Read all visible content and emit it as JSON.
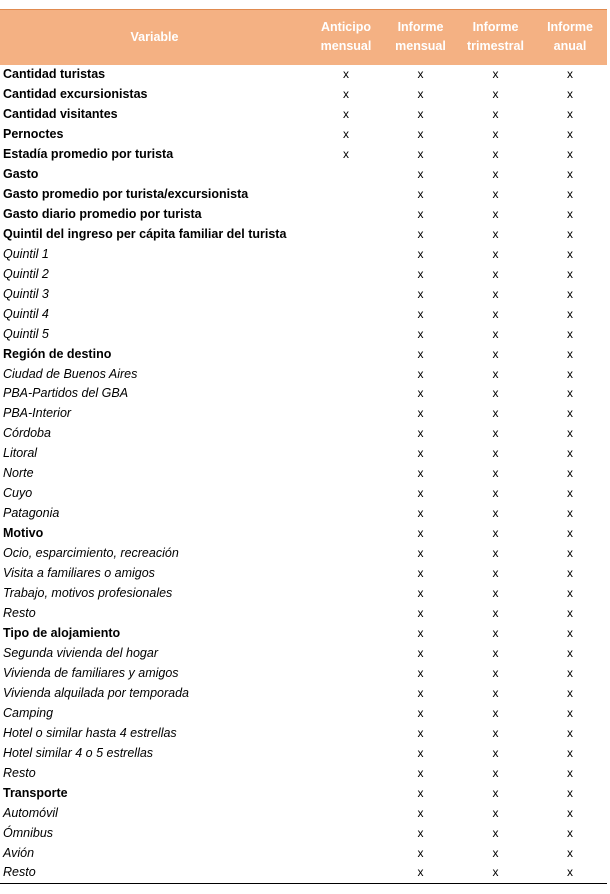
{
  "header": {
    "variable": "Variable",
    "anticipo_mensual": "Anticipo mensual",
    "informe_mensual": "Informe mensual",
    "informe_trimestral": "Informe trimestral",
    "informe_anual": "Informe anual"
  },
  "rows": [
    {
      "label": "Cantidad turistas",
      "type": "group",
      "marks": [
        "x",
        "x",
        "x",
        "x"
      ]
    },
    {
      "label": "Cantidad excursionistas",
      "type": "group",
      "marks": [
        "x",
        "x",
        "x",
        "x"
      ]
    },
    {
      "label": "Cantidad visitantes",
      "type": "group",
      "marks": [
        "x",
        "x",
        "x",
        "x"
      ]
    },
    {
      "label": "Pernoctes",
      "type": "group",
      "marks": [
        "x",
        "x",
        "x",
        "x"
      ]
    },
    {
      "label": "Estadía promedio por turista",
      "type": "group",
      "marks": [
        "x",
        "x",
        "x",
        "x"
      ]
    },
    {
      "label": "Gasto",
      "type": "group",
      "marks": [
        "",
        "x",
        "x",
        "x"
      ]
    },
    {
      "label": "Gasto promedio por turista/excursionista",
      "type": "group",
      "marks": [
        "",
        "x",
        "x",
        "x"
      ]
    },
    {
      "label": "Gasto diario promedio por turista",
      "type": "group",
      "marks": [
        "",
        "x",
        "x",
        "x"
      ]
    },
    {
      "label": "Quintil del ingreso per cápita familiar del turista",
      "type": "group",
      "marks": [
        "",
        "x",
        "x",
        "x"
      ]
    },
    {
      "label": "Quintil 1",
      "type": "sub",
      "marks": [
        "",
        "x",
        "x",
        "x"
      ]
    },
    {
      "label": "Quintil 2",
      "type": "sub",
      "marks": [
        "",
        "x",
        "x",
        "x"
      ]
    },
    {
      "label": "Quintil 3",
      "type": "sub",
      "marks": [
        "",
        "x",
        "x",
        "x"
      ]
    },
    {
      "label": "Quintil 4",
      "type": "sub",
      "marks": [
        "",
        "x",
        "x",
        "x"
      ]
    },
    {
      "label": "Quintil 5",
      "type": "sub",
      "marks": [
        "",
        "x",
        "x",
        "x"
      ]
    },
    {
      "label": "Región de destino",
      "type": "group",
      "marks": [
        "",
        "x",
        "x",
        "x"
      ]
    },
    {
      "label": "Ciudad de Buenos Aires",
      "type": "sub",
      "marks": [
        "",
        "x",
        "x",
        "x"
      ]
    },
    {
      "label": "PBA-Partidos del GBA",
      "type": "sub",
      "marks": [
        "",
        "x",
        "x",
        "x"
      ]
    },
    {
      "label": "PBA-Interior",
      "type": "sub",
      "marks": [
        "",
        "x",
        "x",
        "x"
      ]
    },
    {
      "label": "Córdoba",
      "type": "sub",
      "marks": [
        "",
        "x",
        "x",
        "x"
      ]
    },
    {
      "label": "Litoral",
      "type": "sub",
      "marks": [
        "",
        "x",
        "x",
        "x"
      ]
    },
    {
      "label": "Norte",
      "type": "sub",
      "marks": [
        "",
        "x",
        "x",
        "x"
      ]
    },
    {
      "label": "Cuyo",
      "type": "sub",
      "marks": [
        "",
        "x",
        "x",
        "x"
      ]
    },
    {
      "label": "Patagonia",
      "type": "sub",
      "marks": [
        "",
        "x",
        "x",
        "x"
      ]
    },
    {
      "label": "Motivo",
      "type": "group",
      "marks": [
        "",
        "x",
        "x",
        "x"
      ]
    },
    {
      "label": "Ocio, esparcimiento, recreación",
      "type": "sub",
      "marks": [
        "",
        "x",
        "x",
        "x"
      ]
    },
    {
      "label": "Visita a familiares o amigos",
      "type": "sub",
      "marks": [
        "",
        "x",
        "x",
        "x"
      ]
    },
    {
      "label": "Trabajo, motivos profesionales",
      "type": "sub",
      "marks": [
        "",
        "x",
        "x",
        "x"
      ]
    },
    {
      "label": "Resto",
      "type": "sub",
      "marks": [
        "",
        "x",
        "x",
        "x"
      ]
    },
    {
      "label": "Tipo de alojamiento",
      "type": "group",
      "marks": [
        "",
        "x",
        "x",
        "x"
      ]
    },
    {
      "label": "Segunda vivienda del hogar",
      "type": "sub",
      "marks": [
        "",
        "x",
        "x",
        "x"
      ]
    },
    {
      "label": "Vivienda de familiares y amigos",
      "type": "sub",
      "marks": [
        "",
        "x",
        "x",
        "x"
      ]
    },
    {
      "label": "Vivienda alquilada por temporada",
      "type": "sub",
      "marks": [
        "",
        "x",
        "x",
        "x"
      ]
    },
    {
      "label": "Camping",
      "type": "sub",
      "marks": [
        "",
        "x",
        "x",
        "x"
      ]
    },
    {
      "label": "Hotel o similar hasta 4 estrellas",
      "type": "sub",
      "marks": [
        "",
        "x",
        "x",
        "x"
      ]
    },
    {
      "label": "Hotel similar 4 o 5 estrellas",
      "type": "sub",
      "marks": [
        "",
        "x",
        "x",
        "x"
      ]
    },
    {
      "label": "Resto",
      "type": "sub",
      "marks": [
        "",
        "x",
        "x",
        "x"
      ]
    },
    {
      "label": "Transporte",
      "type": "group",
      "marks": [
        "",
        "x",
        "x",
        "x"
      ]
    },
    {
      "label": "Automóvil",
      "type": "sub",
      "marks": [
        "",
        "x",
        "x",
        "x"
      ]
    },
    {
      "label": "Ómnibus",
      "type": "sub",
      "marks": [
        "",
        "x",
        "x",
        "x"
      ]
    },
    {
      "label": "Avión",
      "type": "sub",
      "marks": [
        "",
        "x",
        "x",
        "x"
      ]
    },
    {
      "label": "Resto",
      "type": "sub",
      "marks": [
        "",
        "x",
        "x",
        "x"
      ]
    }
  ]
}
